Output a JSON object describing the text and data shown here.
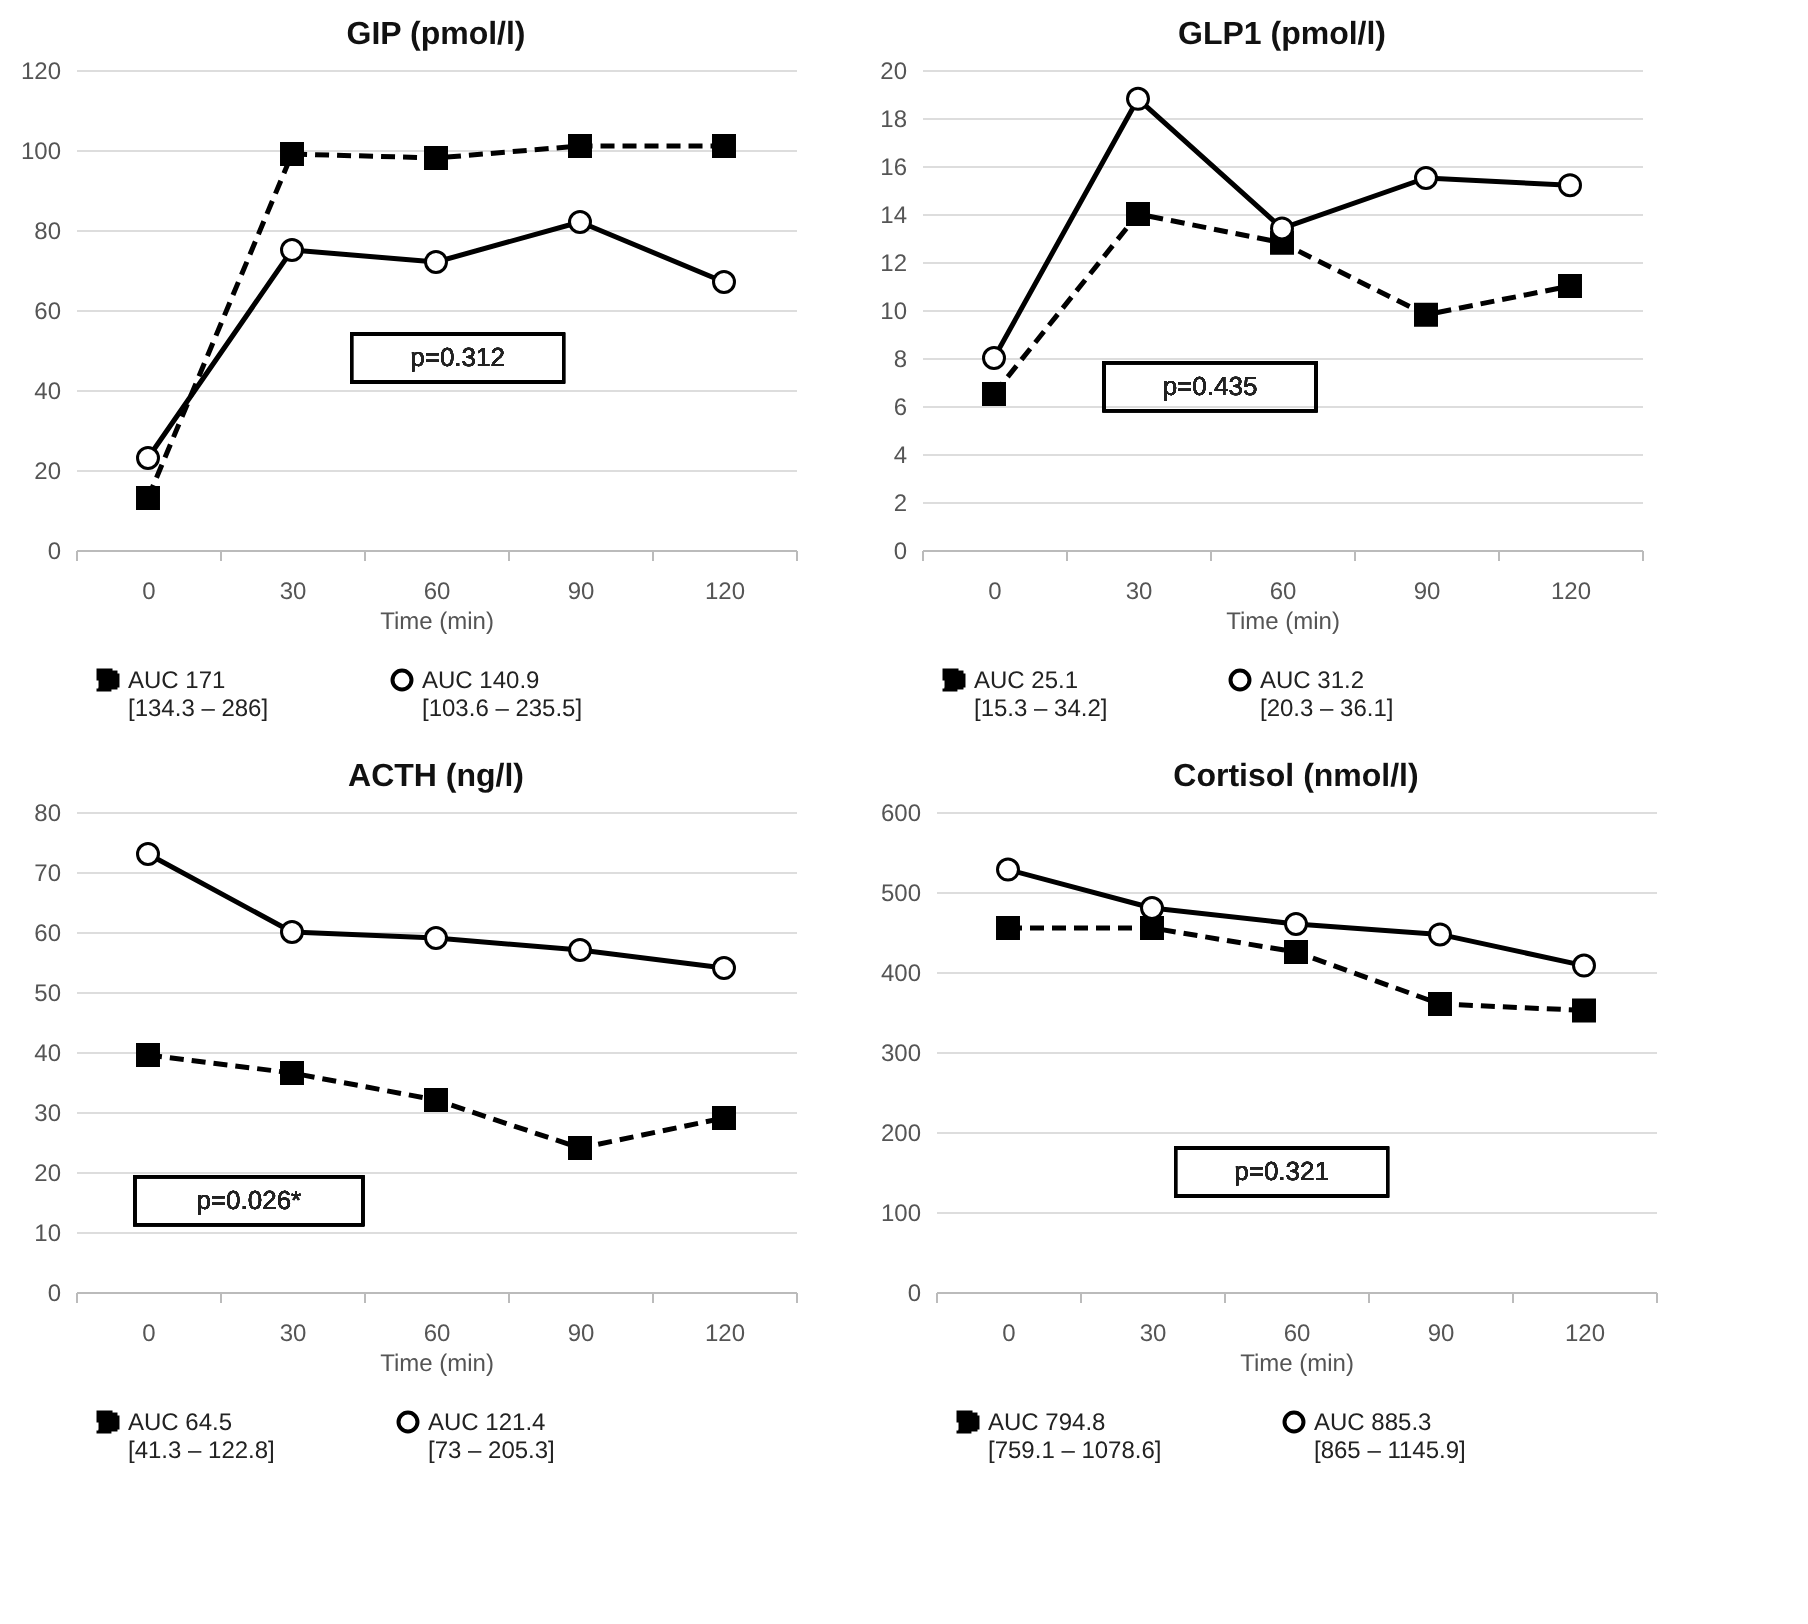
{
  "chart_data": [
    {
      "type": "line",
      "title": "GIP (pmol/l)",
      "xlabel": "Time (min)",
      "categories": [
        "0",
        "30",
        "60",
        "90",
        "120"
      ],
      "ylim": [
        0,
        120
      ],
      "yticks": [
        0,
        20,
        40,
        60,
        80,
        100,
        120
      ],
      "grid": "y",
      "legend": "bottom",
      "annotations": [
        "p=0.312"
      ],
      "series": [
        {
          "name": "AUC 171\n[134.3 – 286]",
          "color": "#000000",
          "marker": "square",
          "line_style": "dashed",
          "values": [
            13,
            99,
            98,
            101,
            101
          ]
        },
        {
          "name": "AUC 140.9\n[103.6 – 235.5]",
          "color": "#000000",
          "marker": "circle",
          "line_style": "solid",
          "values": [
            23,
            75,
            72,
            82,
            67
          ]
        }
      ]
    },
    {
      "type": "line",
      "title": "GLP1 (pmol/l)",
      "xlabel": "Time (min)",
      "categories": [
        "0",
        "30",
        "60",
        "90",
        "120"
      ],
      "ylim": [
        0,
        20
      ],
      "yticks": [
        0,
        2,
        4,
        6,
        8,
        10,
        12,
        14,
        16,
        18,
        20
      ],
      "grid": "y",
      "legend": "bottom",
      "annotations": [
        "p=0.435"
      ],
      "series": [
        {
          "name": "AUC 25.1\n[15.3 – 34.2]",
          "color": "#000000",
          "marker": "square",
          "line_style": "dashed",
          "values": [
            6.5,
            14,
            12.8,
            9.8,
            11
          ]
        },
        {
          "name": "AUC 31.2\n[20.3 – 36.1]",
          "color": "#000000",
          "marker": "circle",
          "line_style": "solid",
          "values": [
            8,
            18.8,
            13.4,
            15.5,
            15.2
          ]
        }
      ]
    },
    {
      "type": "line",
      "title": "ACTH (ng/l)",
      "xlabel": "Time (min)",
      "categories": [
        "0",
        "30",
        "60",
        "90",
        "120"
      ],
      "ylim": [
        0,
        80
      ],
      "yticks": [
        0,
        10,
        20,
        30,
        40,
        50,
        60,
        70,
        80
      ],
      "grid": "y",
      "legend": "bottom",
      "annotations": [
        "p=0.026*"
      ],
      "series": [
        {
          "name": "AUC 64.5\n[41.3 – 122.8]",
          "color": "#000000",
          "marker": "square",
          "line_style": "dashed",
          "values": [
            39.5,
            36.5,
            32,
            24,
            29
          ]
        },
        {
          "name": "AUC 121.4\n[73 – 205.3]",
          "color": "#000000",
          "marker": "circle",
          "line_style": "solid",
          "values": [
            73,
            60,
            59,
            57,
            54
          ]
        }
      ]
    },
    {
      "type": "line",
      "title": "Cortisol (nmol/l)",
      "xlabel": "Time (min)",
      "categories": [
        "0",
        "30",
        "60",
        "90",
        "120"
      ],
      "ylim": [
        0,
        600
      ],
      "yticks": [
        0,
        100,
        200,
        300,
        400,
        500,
        600
      ],
      "grid": "y",
      "legend": "bottom",
      "annotations": [
        "p=0.321"
      ],
      "series": [
        {
          "name": "AUC 794.8\n[759.1 – 1078.6]",
          "color": "#000000",
          "marker": "square",
          "line_style": "dashed",
          "values": [
            455,
            455,
            425,
            360,
            352
          ]
        },
        {
          "name": "AUC 885.3\n[865 – 1145.9]",
          "color": "#000000",
          "marker": "circle",
          "line_style": "solid",
          "values": [
            528,
            480,
            460,
            447,
            408
          ]
        }
      ]
    }
  ]
}
